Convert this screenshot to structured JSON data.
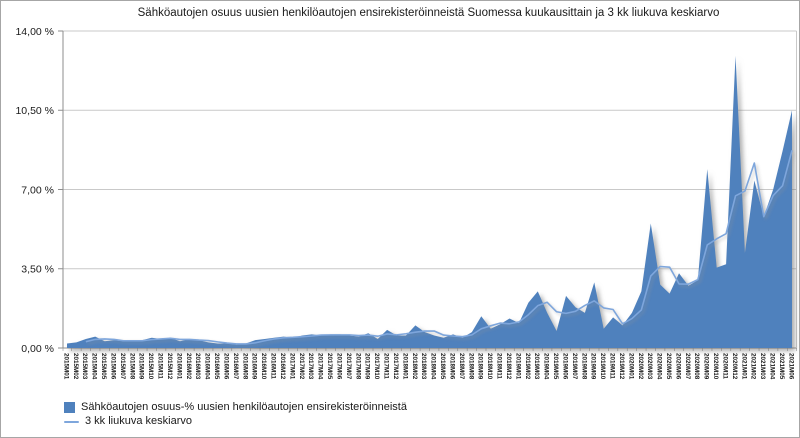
{
  "chart": {
    "title": "Sähköautojen osuus uusien henkilöautojen ensirekisteröinneistä Suomessa kuukausittain ja 3 kk liukuva keskiarvo",
    "legend": {
      "area_label": "Sähköautojen osuus-% uusien henkilöautojen ensirekisteröinneistä",
      "line_label": "3 kk liukuva keskiarvo"
    }
  },
  "chart_data": {
    "type": "area",
    "title": "Sähköautojen osuus uusien henkilöautojen ensirekisteröinneistä Suomessa kuukausittain ja 3 kk liukuva keskiarvo",
    "categories": [
      "2015M01",
      "2015M02",
      "2015M03",
      "2015M04",
      "2015M05",
      "2015M06",
      "2015M07",
      "2015M08",
      "2015M09",
      "2015M10",
      "2015M11",
      "2015M12",
      "2016M01",
      "2016M02",
      "2016M03",
      "2016M04",
      "2016M05",
      "2016M06",
      "2016M07",
      "2016M08",
      "2016M09",
      "2016M10",
      "2016M11",
      "2016M12",
      "2017M01",
      "2017M02",
      "2017M03",
      "2017M04",
      "2017M05",
      "2017M06",
      "2017M07",
      "2017M08",
      "2017M09",
      "2017M10",
      "2017M11",
      "2017M12",
      "2018M01",
      "2018M02",
      "2018M03",
      "2018M04",
      "2018M05",
      "2018M06",
      "2018M07",
      "2018M08",
      "2018M09",
      "2018M10",
      "2018M11",
      "2018M12",
      "2019M01",
      "2019M02",
      "2019M03",
      "2019M04",
      "2019M05",
      "2019M06",
      "2019M07",
      "2019M08",
      "2019M09",
      "2019M10",
      "2019M11",
      "2019M12",
      "2020M01",
      "2020M02",
      "2020M03",
      "2020M04",
      "2020M05",
      "2020M06",
      "2020M07",
      "2020M08",
      "2020M09",
      "2020M10",
      "2020M11",
      "2020M12",
      "2021M01",
      "2021M02",
      "2021M03",
      "2021M04",
      "2021M05",
      "2021M06"
    ],
    "series": [
      {
        "name": "Sähköautojen osuus-% uusien henkilöautojen ensirekisteröinneistä",
        "type": "area",
        "color": "#4f81bd",
        "values": [
          0.2,
          0.25,
          0.4,
          0.5,
          0.3,
          0.35,
          0.3,
          0.3,
          0.35,
          0.45,
          0.4,
          0.45,
          0.3,
          0.4,
          0.35,
          0.25,
          0.2,
          0.2,
          0.15,
          0.2,
          0.35,
          0.4,
          0.45,
          0.5,
          0.45,
          0.55,
          0.6,
          0.55,
          0.6,
          0.6,
          0.55,
          0.5,
          0.65,
          0.4,
          0.8,
          0.55,
          0.55,
          1.0,
          0.7,
          0.55,
          0.45,
          0.6,
          0.45,
          0.7,
          1.4,
          0.85,
          1.05,
          1.3,
          1.1,
          2.0,
          2.5,
          1.55,
          0.75,
          2.3,
          1.8,
          1.55,
          2.9,
          0.85,
          1.35,
          1.0,
          1.55,
          2.5,
          5.5,
          2.8,
          2.4,
          3.3,
          2.75,
          3.0,
          7.9,
          3.55,
          3.7,
          12.9,
          4.2,
          7.4,
          5.8,
          7.0,
          8.7,
          10.5
        ]
      },
      {
        "name": "3 kk liukuva keskiarvo",
        "type": "line",
        "color": "#7ea6dc",
        "values": [
          null,
          null,
          0.28,
          0.38,
          0.4,
          0.38,
          0.32,
          0.32,
          0.32,
          0.37,
          0.4,
          0.43,
          0.38,
          0.38,
          0.35,
          0.33,
          0.27,
          0.22,
          0.18,
          0.18,
          0.23,
          0.32,
          0.4,
          0.45,
          0.47,
          0.5,
          0.53,
          0.57,
          0.58,
          0.58,
          0.58,
          0.55,
          0.57,
          0.52,
          0.62,
          0.58,
          0.63,
          0.7,
          0.75,
          0.75,
          0.57,
          0.53,
          0.5,
          0.58,
          0.85,
          0.98,
          1.1,
          1.07,
          1.15,
          1.47,
          1.87,
          2.02,
          1.6,
          1.53,
          1.62,
          1.88,
          2.08,
          1.77,
          1.7,
          1.07,
          1.3,
          1.68,
          3.18,
          3.6,
          3.57,
          2.83,
          2.82,
          3.02,
          4.55,
          4.82,
          5.05,
          6.72,
          6.93,
          8.17,
          5.8,
          6.73,
          7.17,
          8.73
        ]
      }
    ],
    "y_axis": {
      "min": 0,
      "max": 14,
      "tick_interval": 3.5,
      "tick_labels": [
        "0,00 %",
        "3,50 %",
        "7,00 %",
        "10,50 %",
        "14,00 %"
      ]
    },
    "x_axis": {
      "label_rotation": 90
    },
    "grid": true,
    "legend_position": "bottom-left",
    "colors": {
      "gridline": "#c9c9c9",
      "axis": "#8e8e8e",
      "background": "#ffffff",
      "border": "#a6a6a6",
      "area_fill": "#4f81bd",
      "ma_line": "#7ea6dc"
    }
  }
}
